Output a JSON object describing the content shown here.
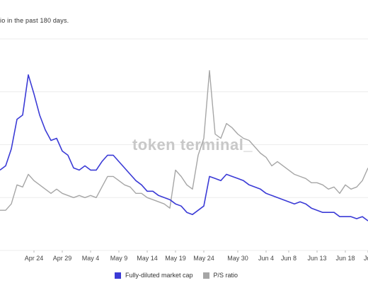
{
  "subtitle": "io in the past 180 days.",
  "watermark": "token terminal_",
  "colors": {
    "market_cap": "#3b3bd6",
    "ps_ratio": "#a6a6a6",
    "grid": "#ececec",
    "watermark": "#c8c8c8"
  },
  "chart_data": {
    "type": "line",
    "title": "",
    "xlabel": "",
    "ylabel": "",
    "grid": true,
    "legend_position": "bottom-center",
    "x": [
      "Apr 18",
      "Apr 19",
      "Apr 20",
      "Apr 21",
      "Apr 22",
      "Apr 23",
      "Apr 24",
      "Apr 25",
      "Apr 26",
      "Apr 27",
      "Apr 28",
      "Apr 29",
      "Apr 30",
      "May 1",
      "May 2",
      "May 3",
      "May 4",
      "May 5",
      "May 6",
      "May 7",
      "May 8",
      "May 9",
      "May 10",
      "May 11",
      "May 12",
      "May 13",
      "May 14",
      "May 15",
      "May 16",
      "May 17",
      "May 18",
      "May 19",
      "May 20",
      "May 21",
      "May 22",
      "May 23",
      "May 24",
      "May 25",
      "May 26",
      "May 27",
      "May 28",
      "May 29",
      "May 30",
      "May 31",
      "Jun 1",
      "Jun 2",
      "Jun 3",
      "Jun 4",
      "Jun 5",
      "Jun 6",
      "Jun 7",
      "Jun 8",
      "Jun 9",
      "Jun 10",
      "Jun 11",
      "Jun 12",
      "Jun 13",
      "Jun 14",
      "Jun 15",
      "Jun 16",
      "Jun 17",
      "Jun 18",
      "Jun 19",
      "Jun 20",
      "Jun 21",
      "Jun 22"
    ],
    "x_ticks": [
      "Apr 24",
      "Apr 29",
      "May 4",
      "May 9",
      "May 14",
      "May 19",
      "May 24",
      "May 30",
      "Jun 4",
      "Jun 8",
      "Jun 13",
      "Jun 18",
      "Ju"
    ],
    "ylim": [
      0,
      100
    ],
    "series": [
      {
        "name": "Fully-diluted market cap",
        "values": [
          38,
          40,
          48,
          62,
          64,
          83,
          74,
          64,
          57,
          52,
          53,
          47,
          45,
          39,
          38,
          40,
          38,
          38,
          42,
          45,
          45,
          42,
          39,
          36,
          33,
          31,
          28,
          28,
          26,
          25,
          24,
          22,
          21,
          18,
          17,
          19,
          21,
          35,
          34,
          33,
          36,
          35,
          34,
          33,
          31,
          30,
          29,
          27,
          26,
          25,
          24,
          23,
          22,
          23,
          22,
          20,
          19,
          18,
          18,
          18,
          16,
          16,
          16,
          15,
          16,
          14
        ]
      },
      {
        "name": "P/S ratio",
        "values": [
          19,
          19,
          22,
          31,
          30,
          36,
          33,
          31,
          29,
          27,
          29,
          27,
          26,
          25,
          26,
          25,
          26,
          25,
          30,
          35,
          35,
          33,
          31,
          30,
          27,
          27,
          25,
          24,
          23,
          22,
          20,
          38,
          35,
          31,
          29,
          45,
          53,
          85,
          55,
          53,
          60,
          58,
          55,
          53,
          52,
          49,
          46,
          44,
          40,
          42,
          40,
          38,
          36,
          35,
          34,
          32,
          32,
          31,
          29,
          30,
          27,
          31,
          29,
          30,
          33,
          39
        ]
      }
    ]
  },
  "legend": {
    "items": [
      {
        "label": "Fully-diluted market cap",
        "color": "#3b3bd6"
      },
      {
        "label": "P/S ratio",
        "color": "#a6a6a6"
      }
    ]
  }
}
